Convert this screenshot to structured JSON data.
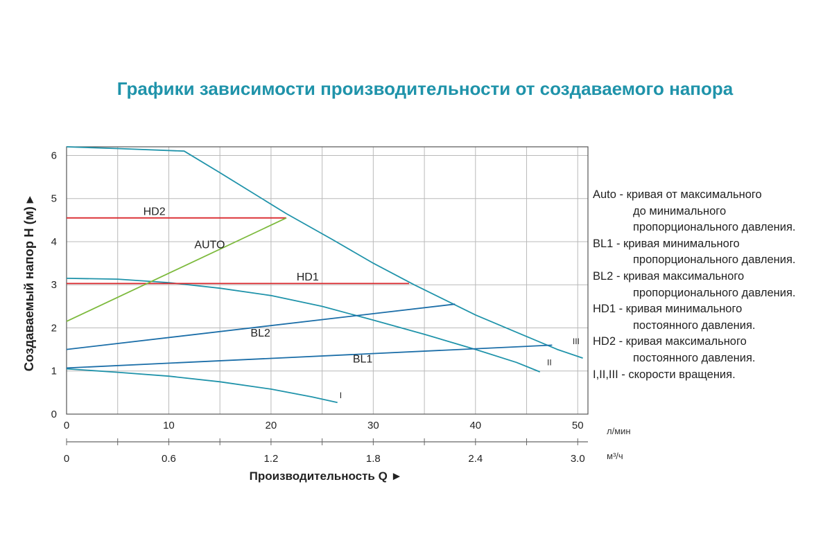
{
  "chart_data": {
    "type": "line",
    "title": "Графики зависимости производительности от создаваемого напора",
    "ylabel": "Создаваемый напор H (м) ▸",
    "xlabel": "Производительность Q ►",
    "x_unit": "л/мин",
    "x2_unit": "м³/ч",
    "xlim": [
      0,
      51
    ],
    "ylim": [
      0,
      6.2
    ],
    "x_ticks": [
      "0",
      "10",
      "20",
      "30",
      "40",
      "50"
    ],
    "x2_ticks": [
      "0",
      "0.6",
      "1.2",
      "1.8",
      "2.4",
      "3.0"
    ],
    "y_ticks": [
      "0",
      "1",
      "2",
      "3",
      "4",
      "5",
      "6"
    ],
    "grid": true,
    "series": [
      {
        "name": "I",
        "color": "#1f93aa",
        "points": [
          [
            0,
            1.05
          ],
          [
            5,
            0.97
          ],
          [
            10,
            0.88
          ],
          [
            15,
            0.75
          ],
          [
            20,
            0.58
          ],
          [
            24,
            0.4
          ],
          [
            26.5,
            0.27
          ]
        ]
      },
      {
        "name": "II",
        "color": "#1f93aa",
        "points": [
          [
            0,
            3.15
          ],
          [
            5,
            3.13
          ],
          [
            10,
            3.05
          ],
          [
            15,
            2.92
          ],
          [
            20,
            2.75
          ],
          [
            25,
            2.5
          ],
          [
            30,
            2.18
          ],
          [
            35,
            1.85
          ],
          [
            40,
            1.5
          ],
          [
            44,
            1.2
          ],
          [
            46.3,
            0.98
          ]
        ]
      },
      {
        "name": "III",
        "color": "#1f93aa",
        "points": [
          [
            0,
            6.2
          ],
          [
            5,
            6.16
          ],
          [
            11.5,
            6.1
          ],
          [
            15,
            5.6
          ],
          [
            21.5,
            4.65
          ],
          [
            26,
            4.05
          ],
          [
            30,
            3.5
          ],
          [
            34,
            3.0
          ],
          [
            40,
            2.3
          ],
          [
            45,
            1.8
          ],
          [
            48,
            1.5
          ],
          [
            50.5,
            1.3
          ]
        ]
      },
      {
        "name": "HD2",
        "color": "#d9262b",
        "points": [
          [
            0,
            4.55
          ],
          [
            21.5,
            4.55
          ]
        ]
      },
      {
        "name": "HD1",
        "color": "#d9262b",
        "points": [
          [
            0,
            3.03
          ],
          [
            33.5,
            3.03
          ]
        ]
      },
      {
        "name": "AUTO",
        "color": "#7dba3d",
        "points": [
          [
            0,
            2.15
          ],
          [
            21.5,
            4.55
          ]
        ]
      },
      {
        "name": "BL2",
        "color": "#1b6ea8",
        "points": [
          [
            0,
            1.5
          ],
          [
            38,
            2.55
          ]
        ]
      },
      {
        "name": "BL1",
        "color": "#1b6ea8",
        "points": [
          [
            0,
            1.07
          ],
          [
            47.5,
            1.6
          ]
        ]
      }
    ],
    "annotations": [
      {
        "text": "HD2",
        "x": 7.5,
        "y": 4.62
      },
      {
        "text": "AUTO",
        "x": 12.5,
        "y": 3.85
      },
      {
        "text": "HD1",
        "x": 22.5,
        "y": 3.1
      },
      {
        "text": "BL2",
        "x": 18,
        "y": 1.8
      },
      {
        "text": "BL1",
        "x": 28,
        "y": 1.2
      },
      {
        "text": "I",
        "x": 26.7,
        "y": 0.37
      },
      {
        "text": "II",
        "x": 47,
        "y": 1.13
      },
      {
        "text": "III",
        "x": 49.5,
        "y": 1.62
      }
    ]
  },
  "legend": {
    "lines": [
      {
        "text": "Auto - кривая от максимального",
        "indent": false
      },
      {
        "text": "до минимального",
        "indent": true
      },
      {
        "text": "пропорционального давления.",
        "indent": true
      },
      {
        "text": "BL1 - кривая минимального",
        "indent": false
      },
      {
        "text": "пропорционального давления.",
        "indent": true
      },
      {
        "text": "BL2 - кривая максимального",
        "indent": false
      },
      {
        "text": "пропорционального давления.",
        "indent": true
      },
      {
        "text": "HD1 - кривая минимального",
        "indent": false
      },
      {
        "text": "постоянного давления.",
        "indent": true
      },
      {
        "text": "HD2 - кривая максимального",
        "indent": false
      },
      {
        "text": "постоянного давления.",
        "indent": true
      },
      {
        "text": "I,II,III - скорости вращения.",
        "indent": false
      }
    ]
  }
}
